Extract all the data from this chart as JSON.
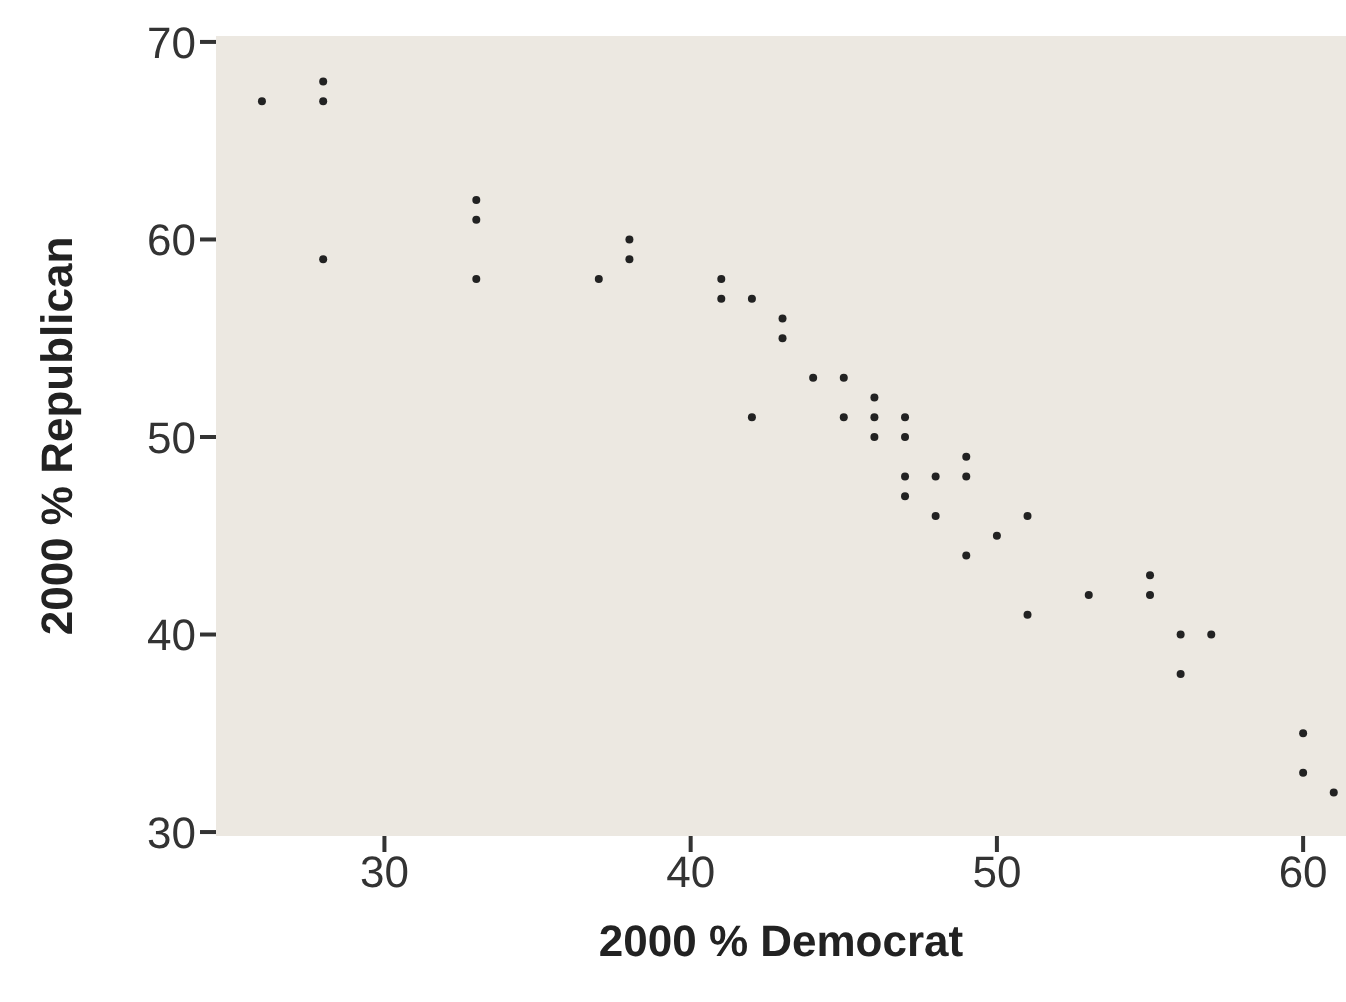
{
  "chart_data": {
    "type": "scatter",
    "xlabel": "2000 % Democrat",
    "ylabel": "2000 % Republican",
    "xlim": [
      24.5,
      61.4
    ],
    "ylim": [
      29.8,
      70.3
    ],
    "xticks": [
      30,
      40,
      50,
      60
    ],
    "yticks": [
      30,
      40,
      50,
      60,
      70
    ],
    "grid": false,
    "marker": "circle",
    "series": [
      {
        "color": "#222222",
        "x": [
          26,
          28,
          28,
          28,
          33,
          33,
          33,
          37,
          38,
          38,
          41,
          41,
          42,
          42,
          43,
          43,
          44,
          45,
          45,
          46,
          46,
          46,
          47,
          47,
          47,
          47,
          48,
          48,
          49,
          49,
          49,
          50,
          51,
          51,
          53,
          55,
          55,
          56,
          56,
          57,
          60,
          60,
          61
        ],
        "values": [
          67,
          68,
          67,
          59,
          62,
          61,
          58,
          58,
          60,
          59,
          58,
          57,
          57,
          51,
          56,
          55,
          53,
          53,
          51,
          52,
          51,
          50,
          51,
          50,
          48,
          47,
          48,
          46,
          49,
          48,
          44,
          45,
          46,
          41,
          42,
          43,
          42,
          40,
          38,
          40,
          35,
          33,
          32
        ]
      }
    ]
  }
}
